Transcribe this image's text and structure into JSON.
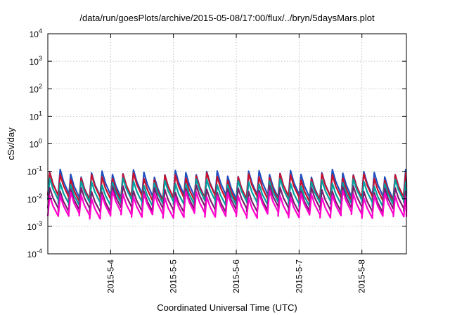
{
  "chart_data": {
    "type": "line",
    "title": "/data/run/goesPlots/archive/2015-05-08/17:00/flux/../bryn/5daysMars.plot",
    "xlabel": "Coordinated Universal Time (UTC)",
    "ylabel": "cSv/day",
    "yscale": "log",
    "ylim": [
      0.0001,
      10000
    ],
    "y_ticks": [
      {
        "base": "10",
        "exp": "-4",
        "value": 0.0001
      },
      {
        "base": "10",
        "exp": "-3",
        "value": 0.001
      },
      {
        "base": "10",
        "exp": "-2",
        "value": 0.01
      },
      {
        "base": "10",
        "exp": "-1",
        "value": 0.1
      },
      {
        "base": "10",
        "exp": "0",
        "value": 1
      },
      {
        "base": "10",
        "exp": "1",
        "value": 10
      },
      {
        "base": "10",
        "exp": "2",
        "value": 100
      },
      {
        "base": "10",
        "exp": "3",
        "value": 1000
      },
      {
        "base": "10",
        "exp": "4",
        "value": 10000
      }
    ],
    "xlim": [
      "2015-05-03 00:00",
      "2015-05-08 17:00"
    ],
    "x_ticks": [
      {
        "label": "2015-5-4",
        "date": "2015-05-04"
      },
      {
        "label": "2015-5-5",
        "date": "2015-05-05"
      },
      {
        "label": "2015-5-6",
        "date": "2015-05-06"
      },
      {
        "label": "2015-5-7",
        "date": "2015-05-07"
      },
      {
        "label": "2015-5-8",
        "date": "2015-05-08"
      }
    ],
    "grid": true,
    "legend": "none",
    "periodic_pattern": {
      "cycles_per_day": 6,
      "note": "each series rises sharply then decays repeatedly over the period"
    },
    "series": [
      {
        "color": "#1f4fbf",
        "peak": 0.085,
        "trough": 0.012
      },
      {
        "color": "#c8102e",
        "peak": 0.065,
        "trough": 0.01
      },
      {
        "color": "#00a0a0",
        "peak": 0.04,
        "trough": 0.007
      },
      {
        "color": "#7a1f6e",
        "peak": 0.022,
        "trough": 0.004
      },
      {
        "color": "#ff00cc",
        "peak": 0.014,
        "trough": 0.0025
      }
    ]
  }
}
